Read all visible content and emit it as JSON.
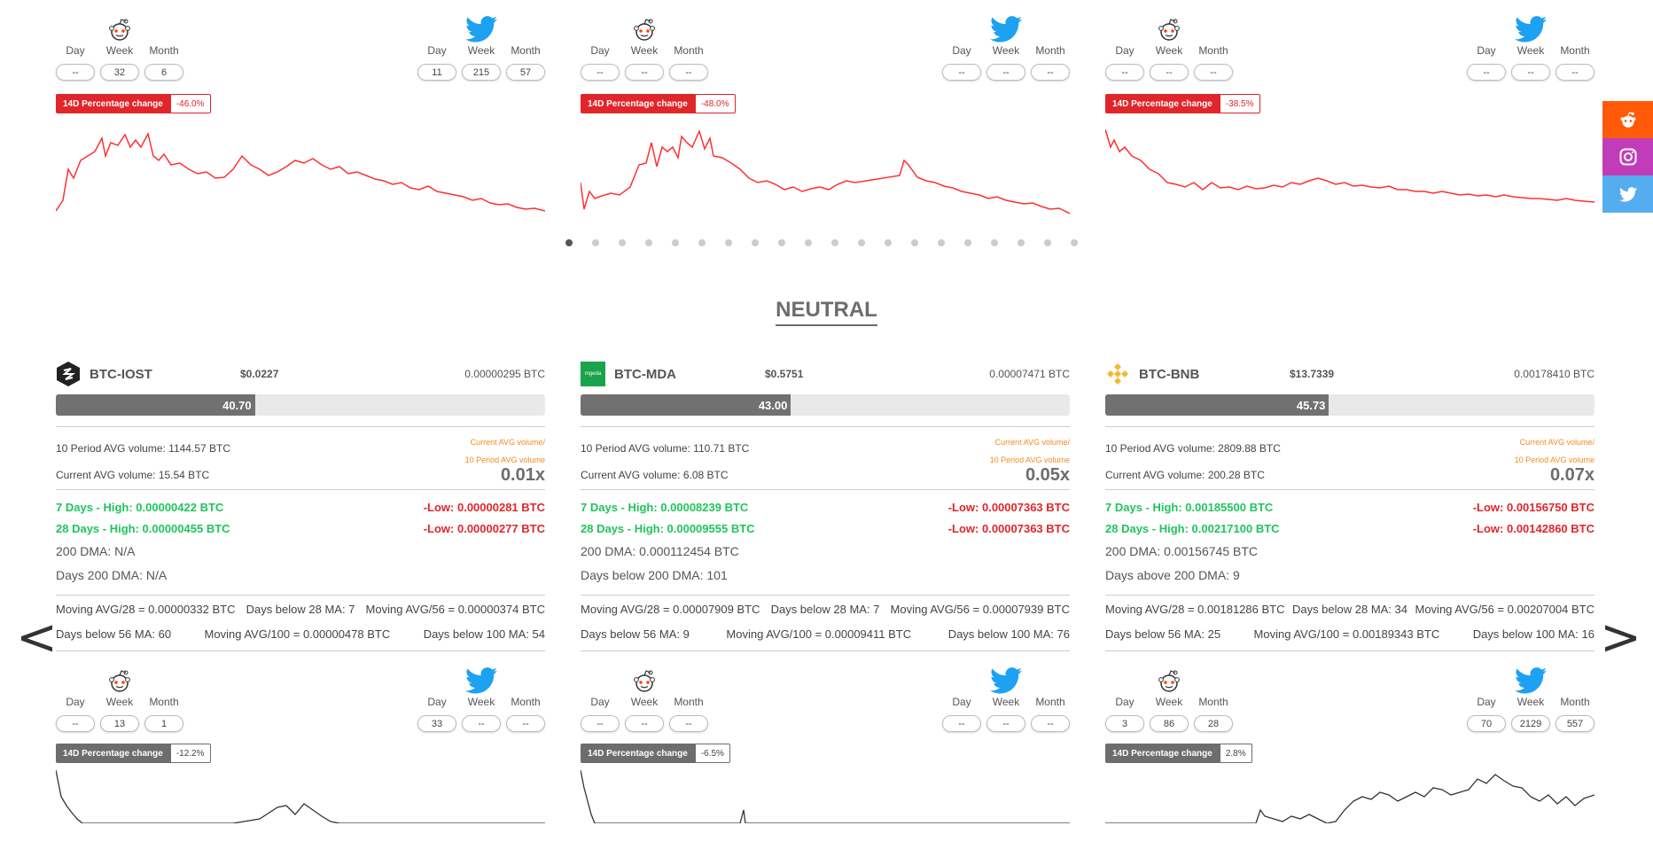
{
  "top_row": [
    {
      "reddit": {
        "labels": [
          "Day",
          "Week",
          "Month"
        ],
        "values": [
          "--",
          "32",
          "6"
        ]
      },
      "twitter": {
        "labels": [
          "Day",
          "Week",
          "Month"
        ],
        "values": [
          "11",
          "215",
          "57"
        ]
      },
      "change_label": "14D Percentage change",
      "change_value": "-46.0%"
    },
    {
      "reddit": {
        "labels": [
          "Day",
          "Week",
          "Month"
        ],
        "values": [
          "--",
          "--",
          "--"
        ]
      },
      "twitter": {
        "labels": [
          "Day",
          "Week",
          "Month"
        ],
        "values": [
          "--",
          "--",
          "--"
        ]
      },
      "change_label": "14D Percentage change",
      "change_value": "-48.0%"
    },
    {
      "reddit": {
        "labels": [
          "Day",
          "Week",
          "Month"
        ],
        "values": [
          "--",
          "--",
          "--"
        ]
      },
      "twitter": {
        "labels": [
          "Day",
          "Week",
          "Month"
        ],
        "values": [
          "--",
          "--",
          "--"
        ]
      },
      "change_label": "14D Percentage change",
      "change_value": "-38.5%"
    }
  ],
  "section_title": "NEUTRAL",
  "coins": [
    {
      "name": "BTC-IOST",
      "usd": "$0.0227",
      "btc": "0.00000295 BTC",
      "score": "40.70",
      "score_pct": 40.7,
      "avg10": "10 Period AVG volume: 1144.57 BTC",
      "avgcur": "Current AVG volume: 15.54 BTC",
      "ratio_lbl1": "Current AVG volume/",
      "ratio_lbl2": "10 Period AVG volume",
      "ratio": "0.01x",
      "high7": "7 Days - High: 0.00000422 BTC",
      "low7": "-Low: 0.00000281 BTC",
      "high28": "28 Days - High: 0.00000455 BTC",
      "low28": "-Low: 0.00000277 BTC",
      "dma": "200 DMA: N/A",
      "days_dma": "Days 200 DMA: N/A",
      "ma28": "Moving AVG/28 = 0.00000332 BTC",
      "below28": "Days below 28 MA: 7",
      "ma56": "Moving AVG/56 = 0.00000374 BTC",
      "below56": "Days below 56 MA: 60",
      "ma100": "Moving AVG/100 = 0.00000478 BTC",
      "below100": "Days below 100 MA: 54",
      "reddit": {
        "labels": [
          "Day",
          "Week",
          "Month"
        ],
        "values": [
          "--",
          "13",
          "1"
        ]
      },
      "twitter": {
        "labels": [
          "Day",
          "Week",
          "Month"
        ],
        "values": [
          "33",
          "--",
          "--"
        ]
      },
      "change_label": "14D Percentage change",
      "change_value": "-12.2%"
    },
    {
      "name": "BTC-MDA",
      "usd": "$0.5751",
      "btc": "0.00007471 BTC",
      "score": "43.00",
      "score_pct": 43.0,
      "avg10": "10 Period AVG volume: 110.71 BTC",
      "avgcur": "Current AVG volume: 6.08 BTC",
      "ratio_lbl1": "Current AVG volume/",
      "ratio_lbl2": "10 Period AVG volume",
      "ratio": "0.05x",
      "high7": "7 Days - High: 0.00008239 BTC",
      "low7": "-Low: 0.00007363 BTC",
      "high28": "28 Days - High: 0.00009555 BTC",
      "low28": "-Low: 0.00007363 BTC",
      "dma": "200 DMA: 0.000112454 BTC",
      "days_dma": "Days below 200 DMA: 101",
      "ma28": "Moving AVG/28 = 0.00007909 BTC",
      "below28": "Days below 28 MA: 7",
      "ma56": "Moving AVG/56 = 0.00007939 BTC",
      "below56": "Days below 56 MA: 9",
      "ma100": "Moving AVG/100 = 0.00009411 BTC",
      "below100": "Days below 100 MA: 76",
      "reddit": {
        "labels": [
          "Day",
          "Week",
          "Month"
        ],
        "values": [
          "--",
          "--",
          "--"
        ]
      },
      "twitter": {
        "labels": [
          "Day",
          "Week",
          "Month"
        ],
        "values": [
          "--",
          "--",
          "--"
        ]
      },
      "change_label": "14D Percentage change",
      "change_value": "-6.5%",
      "logo_text": "mgeda"
    },
    {
      "name": "BTC-BNB",
      "usd": "$13.7339",
      "btc": "0.00178410 BTC",
      "score": "45.73",
      "score_pct": 45.73,
      "avg10": "10 Period AVG volume: 2809.88 BTC",
      "avgcur": "Current AVG volume: 200.28 BTC",
      "ratio_lbl1": "Current AVG volume/",
      "ratio_lbl2": "10 Period AVG volume",
      "ratio": "0.07x",
      "high7": "7 Days - High: 0.00185500 BTC",
      "low7": "-Low: 0.00156750 BTC",
      "high28": "28 Days - High: 0.00217100 BTC",
      "low28": "-Low: 0.00142860 BTC",
      "dma": "200 DMA: 0.00156745 BTC",
      "days_dma": "Days above 200 DMA: 9",
      "ma28": "Moving AVG/28 = 0.00181286 BTC",
      "below28": "Days below 28 MA: 34",
      "ma56": "Moving AVG/56 = 0.00207004 BTC",
      "below56": "Days below 56 MA: 25",
      "ma100": "Moving AVG/100 = 0.00189343 BTC",
      "below100": "Days below 100 MA: 16",
      "reddit": {
        "labels": [
          "Day",
          "Week",
          "Month"
        ],
        "values": [
          "3",
          "86",
          "28"
        ]
      },
      "twitter": {
        "labels": [
          "Day",
          "Week",
          "Month"
        ],
        "values": [
          "70",
          "2129",
          "557"
        ]
      },
      "change_label": "14D Percentage change",
      "change_value": "2.8%"
    }
  ],
  "nav": {
    "prev": "<",
    "next": ">"
  },
  "colors": {
    "red": "#e0262b",
    "green": "#20c45c",
    "gray": "#6d6d6d",
    "reddit": "#ff4500",
    "instagram": "#c13584",
    "twitter": "#55acee"
  }
}
